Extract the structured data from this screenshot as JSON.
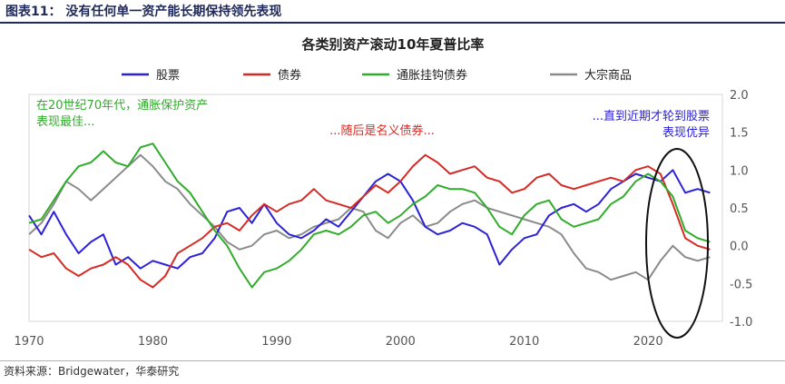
{
  "figure_title": "图表11： 没有任何单一资产能长期保持领先表现",
  "source": "资料来源：Bridgewater，华泰研究",
  "colors": {
    "stocks": "#2b21d6",
    "bonds": "#d62a24",
    "tips": "#2fad2a",
    "commodities": "#8a8a8a",
    "ellipse": "#111111"
  },
  "chart_data": {
    "type": "line",
    "title": "各类别资产滚动10年夏普比率",
    "xlim": [
      1970,
      2026
    ],
    "ylim": [
      -1.0,
      2.0
    ],
    "x_ticks": [
      "1970",
      "1980",
      "1990",
      "2000",
      "2010",
      "2020"
    ],
    "y_ticks": [
      "2.0",
      "1.5",
      "1.0",
      "0.5",
      "0.0",
      "-0.5",
      "-1.0"
    ],
    "grid": false,
    "legend_position": "top",
    "series": [
      {
        "name": "股票",
        "color": "#2b21d6",
        "points": [
          [
            1970,
            0.4
          ],
          [
            1971,
            0.15
          ],
          [
            1972,
            0.45
          ],
          [
            1973,
            0.15
          ],
          [
            1974,
            -0.1
          ],
          [
            1975,
            0.05
          ],
          [
            1976,
            0.15
          ],
          [
            1977,
            -0.25
          ],
          [
            1978,
            -0.15
          ],
          [
            1979,
            -0.3
          ],
          [
            1980,
            -0.2
          ],
          [
            1981,
            -0.25
          ],
          [
            1982,
            -0.3
          ],
          [
            1983,
            -0.15
          ],
          [
            1984,
            -0.1
          ],
          [
            1985,
            0.1
          ],
          [
            1986,
            0.45
          ],
          [
            1987,
            0.5
          ],
          [
            1988,
            0.3
          ],
          [
            1989,
            0.55
          ],
          [
            1990,
            0.3
          ],
          [
            1991,
            0.15
          ],
          [
            1992,
            0.1
          ],
          [
            1993,
            0.2
          ],
          [
            1994,
            0.35
          ],
          [
            1995,
            0.25
          ],
          [
            1996,
            0.45
          ],
          [
            1997,
            0.65
          ],
          [
            1998,
            0.85
          ],
          [
            1999,
            0.95
          ],
          [
            2000,
            0.85
          ],
          [
            2001,
            0.6
          ],
          [
            2002,
            0.25
          ],
          [
            2003,
            0.15
          ],
          [
            2004,
            0.2
          ],
          [
            2005,
            0.3
          ],
          [
            2006,
            0.25
          ],
          [
            2007,
            0.15
          ],
          [
            2008,
            -0.25
          ],
          [
            2009,
            -0.05
          ],
          [
            2010,
            0.1
          ],
          [
            2011,
            0.15
          ],
          [
            2012,
            0.4
          ],
          [
            2013,
            0.5
          ],
          [
            2014,
            0.55
          ],
          [
            2015,
            0.45
          ],
          [
            2016,
            0.55
          ],
          [
            2017,
            0.75
          ],
          [
            2018,
            0.85
          ],
          [
            2019,
            0.95
          ],
          [
            2020,
            0.9
          ],
          [
            2021,
            0.85
          ],
          [
            2022,
            1.0
          ],
          [
            2023,
            0.7
          ],
          [
            2024,
            0.75
          ],
          [
            2025,
            0.7
          ]
        ]
      },
      {
        "name": "债券",
        "color": "#d62a24",
        "points": [
          [
            1970,
            -0.05
          ],
          [
            1971,
            -0.15
          ],
          [
            1972,
            -0.1
          ],
          [
            1973,
            -0.3
          ],
          [
            1974,
            -0.4
          ],
          [
            1975,
            -0.3
          ],
          [
            1976,
            -0.25
          ],
          [
            1977,
            -0.15
          ],
          [
            1978,
            -0.25
          ],
          [
            1979,
            -0.45
          ],
          [
            1980,
            -0.55
          ],
          [
            1981,
            -0.4
          ],
          [
            1982,
            -0.1
          ],
          [
            1983,
            0.0
          ],
          [
            1984,
            0.1
          ],
          [
            1985,
            0.25
          ],
          [
            1986,
            0.3
          ],
          [
            1987,
            0.2
          ],
          [
            1988,
            0.4
          ],
          [
            1989,
            0.55
          ],
          [
            1990,
            0.45
          ],
          [
            1991,
            0.55
          ],
          [
            1992,
            0.6
          ],
          [
            1993,
            0.75
          ],
          [
            1994,
            0.6
          ],
          [
            1995,
            0.55
          ],
          [
            1996,
            0.5
          ],
          [
            1997,
            0.65
          ],
          [
            1998,
            0.8
          ],
          [
            1999,
            0.7
          ],
          [
            2000,
            0.85
          ],
          [
            2001,
            1.05
          ],
          [
            2002,
            1.2
          ],
          [
            2003,
            1.1
          ],
          [
            2004,
            0.95
          ],
          [
            2005,
            1.0
          ],
          [
            2006,
            1.05
          ],
          [
            2007,
            0.9
          ],
          [
            2008,
            0.85
          ],
          [
            2009,
            0.7
          ],
          [
            2010,
            0.75
          ],
          [
            2011,
            0.9
          ],
          [
            2012,
            0.95
          ],
          [
            2013,
            0.8
          ],
          [
            2014,
            0.75
          ],
          [
            2015,
            0.8
          ],
          [
            2016,
            0.85
          ],
          [
            2017,
            0.9
          ],
          [
            2018,
            0.85
          ],
          [
            2019,
            1.0
          ],
          [
            2020,
            1.05
          ],
          [
            2021,
            0.95
          ],
          [
            2022,
            0.55
          ],
          [
            2023,
            0.1
          ],
          [
            2024,
            0.0
          ],
          [
            2025,
            -0.05
          ]
        ]
      },
      {
        "name": "通胀挂钩债券",
        "color": "#2fad2a",
        "points": [
          [
            1970,
            0.3
          ],
          [
            1971,
            0.35
          ],
          [
            1972,
            0.6
          ],
          [
            1973,
            0.85
          ],
          [
            1974,
            1.05
          ],
          [
            1975,
            1.1
          ],
          [
            1976,
            1.25
          ],
          [
            1977,
            1.1
          ],
          [
            1978,
            1.05
          ],
          [
            1979,
            1.3
          ],
          [
            1980,
            1.35
          ],
          [
            1981,
            1.1
          ],
          [
            1982,
            0.85
          ],
          [
            1983,
            0.7
          ],
          [
            1984,
            0.45
          ],
          [
            1985,
            0.2
          ],
          [
            1986,
            0.0
          ],
          [
            1987,
            -0.3
          ],
          [
            1988,
            -0.55
          ],
          [
            1989,
            -0.35
          ],
          [
            1990,
            -0.3
          ],
          [
            1991,
            -0.2
          ],
          [
            1992,
            -0.05
          ],
          [
            1993,
            0.15
          ],
          [
            1994,
            0.2
          ],
          [
            1995,
            0.15
          ],
          [
            1996,
            0.25
          ],
          [
            1997,
            0.4
          ],
          [
            1998,
            0.45
          ],
          [
            1999,
            0.3
          ],
          [
            2000,
            0.4
          ],
          [
            2001,
            0.55
          ],
          [
            2002,
            0.65
          ],
          [
            2003,
            0.8
          ],
          [
            2004,
            0.75
          ],
          [
            2005,
            0.75
          ],
          [
            2006,
            0.7
          ],
          [
            2007,
            0.5
          ],
          [
            2008,
            0.25
          ],
          [
            2009,
            0.15
          ],
          [
            2010,
            0.4
          ],
          [
            2011,
            0.55
          ],
          [
            2012,
            0.6
          ],
          [
            2013,
            0.35
          ],
          [
            2014,
            0.25
          ],
          [
            2015,
            0.3
          ],
          [
            2016,
            0.35
          ],
          [
            2017,
            0.55
          ],
          [
            2018,
            0.65
          ],
          [
            2019,
            0.85
          ],
          [
            2020,
            0.95
          ],
          [
            2021,
            0.85
          ],
          [
            2022,
            0.65
          ],
          [
            2023,
            0.2
          ],
          [
            2024,
            0.1
          ],
          [
            2025,
            0.05
          ]
        ]
      },
      {
        "name": "大宗商品",
        "color": "#8a8a8a",
        "points": [
          [
            1970,
            0.15
          ],
          [
            1971,
            0.3
          ],
          [
            1972,
            0.55
          ],
          [
            1973,
            0.85
          ],
          [
            1974,
            0.75
          ],
          [
            1975,
            0.6
          ],
          [
            1976,
            0.75
          ],
          [
            1977,
            0.9
          ],
          [
            1978,
            1.05
          ],
          [
            1979,
            1.2
          ],
          [
            1980,
            1.05
          ],
          [
            1981,
            0.85
          ],
          [
            1982,
            0.75
          ],
          [
            1983,
            0.55
          ],
          [
            1984,
            0.4
          ],
          [
            1985,
            0.25
          ],
          [
            1986,
            0.05
          ],
          [
            1987,
            -0.05
          ],
          [
            1988,
            0.0
          ],
          [
            1989,
            0.15
          ],
          [
            1990,
            0.2
          ],
          [
            1991,
            0.1
          ],
          [
            1992,
            0.15
          ],
          [
            1993,
            0.25
          ],
          [
            1994,
            0.3
          ],
          [
            1995,
            0.35
          ],
          [
            1996,
            0.5
          ],
          [
            1997,
            0.45
          ],
          [
            1998,
            0.2
          ],
          [
            1999,
            0.1
          ],
          [
            2000,
            0.3
          ],
          [
            2001,
            0.4
          ],
          [
            2002,
            0.25
          ],
          [
            2003,
            0.3
          ],
          [
            2004,
            0.45
          ],
          [
            2005,
            0.55
          ],
          [
            2006,
            0.6
          ],
          [
            2007,
            0.5
          ],
          [
            2008,
            0.45
          ],
          [
            2009,
            0.4
          ],
          [
            2010,
            0.35
          ],
          [
            2011,
            0.3
          ],
          [
            2012,
            0.25
          ],
          [
            2013,
            0.15
          ],
          [
            2014,
            -0.1
          ],
          [
            2015,
            -0.3
          ],
          [
            2016,
            -0.35
          ],
          [
            2017,
            -0.45
          ],
          [
            2018,
            -0.4
          ],
          [
            2019,
            -0.35
          ],
          [
            2020,
            -0.45
          ],
          [
            2021,
            -0.2
          ],
          [
            2022,
            0.0
          ],
          [
            2023,
            -0.15
          ],
          [
            2024,
            -0.2
          ],
          [
            2025,
            -0.15
          ]
        ]
      }
    ],
    "annotations": [
      {
        "text_lines": [
          "在20世纪70年代，通胀保护资产",
          "表现最佳..."
        ],
        "series": "通胀挂钩债券"
      },
      {
        "text_lines": [
          "...随后是名义债券..."
        ],
        "series": "债券"
      },
      {
        "text_lines": [
          "...直到近期才轮到股票",
          "表现优异"
        ],
        "series": "股票"
      }
    ]
  }
}
